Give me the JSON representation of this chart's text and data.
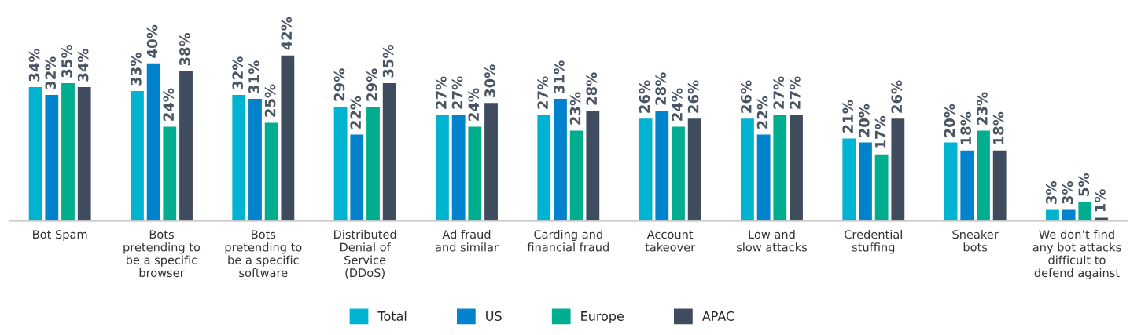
{
  "chart_data": {
    "type": "bar",
    "categories": [
      "Bot Spam",
      "Bots\npretending to\nbe a specific\nbrowser",
      "Bots\npretending to\nbe a specific\nsoftware",
      "Distributed\nDenial of\nService\n(DDoS)",
      "Ad fraud\nand similar",
      "Carding and\nfinancial fraud",
      "Account\ntakeover",
      "Low and\nslow attacks",
      "Credential\nstuffing",
      "Sneaker\nbots",
      "We don’t find\nany bot attacks\ndifficult to\ndefend against"
    ],
    "series": [
      {
        "name": "Total",
        "color": "#00b3d1",
        "values": [
          34,
          33,
          32,
          29,
          27,
          27,
          26,
          26,
          21,
          20,
          3
        ],
        "value_labels": [
          "34%",
          "33%",
          "32%",
          "29%",
          "27%",
          "27%",
          "26%",
          "26%",
          "21%",
          "20%",
          "3%"
        ]
      },
      {
        "name": "US",
        "color": "#0083cc",
        "values": [
          32,
          40,
          31,
          22,
          27,
          31,
          28,
          22,
          20,
          18,
          3
        ],
        "value_labels": [
          "32%",
          "40%",
          "31%",
          "22%",
          "27%",
          "31%",
          "28%",
          "22%",
          "20%",
          "18%",
          "3%"
        ]
      },
      {
        "name": "Europe",
        "color": "#00ad8f",
        "values": [
          35,
          24,
          25,
          29,
          24,
          23,
          24,
          27,
          17,
          23,
          5
        ],
        "value_labels": [
          "35%",
          "24%",
          "25%",
          "29%",
          "24%",
          "23%",
          "24%",
          "27%",
          "17%",
          "23%",
          "5%"
        ]
      },
      {
        "name": "APAC",
        "color": "#3f4c5d",
        "values": [
          34,
          38,
          42,
          35,
          30,
          28,
          26,
          27,
          26,
          18,
          1
        ],
        "value_labels": [
          "34%",
          "38%",
          "42%",
          "35%",
          "30%",
          "28%",
          "26%",
          "27%",
          "26%",
          "18%",
          "1%"
        ]
      }
    ],
    "legend": "bottom",
    "grid": false
  }
}
